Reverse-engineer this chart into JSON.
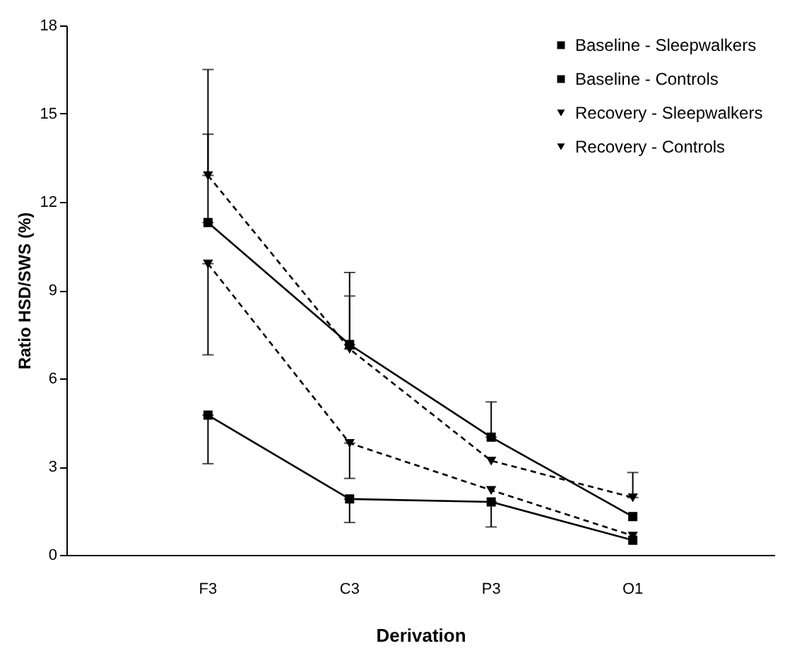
{
  "chart_data": {
    "type": "line",
    "xlabel": "Derivation",
    "ylabel": "Ratio HSD/SWS (%)",
    "categories": [
      "F3",
      "C3",
      "P3",
      "O1"
    ],
    "series": [
      {
        "name": "Baseline - Sleepwalkers",
        "color": "#000000",
        "marker": "square",
        "line_style": "solid",
        "values": [
          11.3,
          7.15,
          4.0,
          1.3
        ],
        "errors": [
          [
            11.3,
            14.3
          ],
          [
            7.15,
            8.8
          ],
          [
            4.0,
            5.2
          ],
          null
        ]
      },
      {
        "name": "Baseline - Controls",
        "color": "#000000",
        "marker": "square",
        "line_style": "solid",
        "values": [
          4.75,
          1.9,
          1.8,
          0.5
        ],
        "errors": [
          [
            3.1,
            4.75
          ],
          [
            1.1,
            1.9
          ],
          [
            0.95,
            1.8
          ],
          null
        ]
      },
      {
        "name": "Recovery - Sleepwalkers",
        "color": "#000000",
        "marker": "triangle",
        "line_style": "dashed",
        "values": [
          12.9,
          7.0,
          3.2,
          1.95
        ],
        "errors": [
          [
            12.9,
            16.5
          ],
          [
            7.0,
            9.6
          ],
          null,
          [
            1.95,
            2.8
          ]
        ]
      },
      {
        "name": "Recovery - Controls",
        "color": "#000000",
        "marker": "triangle",
        "line_style": "dashed",
        "values": [
          9.9,
          3.8,
          2.2,
          0.65
        ],
        "errors": [
          [
            6.8,
            9.9
          ],
          [
            2.6,
            3.8
          ],
          null,
          null
        ]
      }
    ],
    "ylim": [
      0,
      18
    ],
    "yticks": [
      0,
      3,
      6,
      9,
      12,
      15,
      18
    ],
    "grid": false,
    "legend": "top right"
  }
}
